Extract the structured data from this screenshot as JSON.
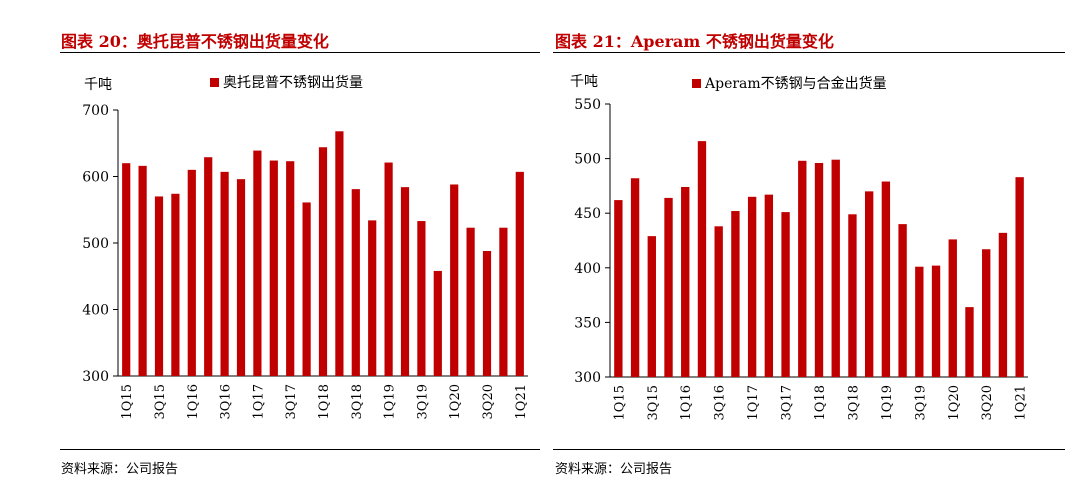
{
  "footer": {
    "source_label": "资料来源：公司报告"
  },
  "colors": {
    "bar": "#c00000",
    "title": "#c00000",
    "axis": "#000000"
  },
  "panels": [
    {
      "title": "图表 20：奥托昆普不锈钢出货量变化",
      "chart_data": {
        "type": "bar",
        "ylabel": "千吨",
        "ylim": [
          300,
          700
        ],
        "yticks": [
          300,
          400,
          500,
          600,
          700
        ],
        "legend": "top-center",
        "grid": false,
        "categories": [
          "1Q15",
          "2Q15",
          "3Q15",
          "4Q15",
          "1Q16",
          "2Q16",
          "3Q16",
          "4Q16",
          "1Q17",
          "2Q17",
          "3Q17",
          "4Q17",
          "1Q18",
          "2Q18",
          "3Q18",
          "4Q18",
          "1Q19",
          "2Q19",
          "3Q19",
          "4Q19",
          "1Q20",
          "2Q20",
          "3Q20",
          "4Q20",
          "1Q21"
        ],
        "tick_labels": [
          "1Q15",
          "",
          "3Q15",
          "",
          "1Q16",
          "",
          "3Q16",
          "",
          "1Q17",
          "",
          "3Q17",
          "",
          "1Q18",
          "",
          "3Q18",
          "",
          "1Q19",
          "",
          "3Q19",
          "",
          "1Q20",
          "",
          "3Q20",
          "",
          "1Q21"
        ],
        "series": [
          {
            "name": "奥托昆普不锈钢出货量",
            "values": [
              620,
              616,
              570,
              574,
              610,
              629,
              607,
              596,
              639,
              624,
              623,
              561,
              644,
              668,
              581,
              534,
              621,
              584,
              533,
              458,
              588,
              523,
              488,
              523,
              607
            ]
          }
        ]
      }
    },
    {
      "title": "图表 21：Aperam 不锈钢出货量变化",
      "chart_data": {
        "type": "bar",
        "ylabel": "千吨",
        "ylim": [
          300,
          550
        ],
        "yticks": [
          300,
          350,
          400,
          450,
          500,
          550
        ],
        "legend": "top-center",
        "grid": false,
        "categories": [
          "1Q15",
          "2Q15",
          "3Q15",
          "4Q15",
          "1Q16",
          "2Q16",
          "3Q16",
          "4Q16",
          "1Q17",
          "2Q17",
          "3Q17",
          "4Q17",
          "1Q18",
          "2Q18",
          "3Q18",
          "4Q18",
          "1Q19",
          "2Q19",
          "3Q19",
          "4Q19",
          "1Q20",
          "2Q20",
          "3Q20",
          "4Q20",
          "1Q21"
        ],
        "tick_labels": [
          "1Q15",
          "",
          "3Q15",
          "",
          "1Q16",
          "",
          "3Q16",
          "",
          "1Q17",
          "",
          "3Q17",
          "",
          "1Q18",
          "",
          "3Q18",
          "",
          "1Q19",
          "",
          "3Q19",
          "",
          "1Q20",
          "",
          "3Q20",
          "",
          "1Q21"
        ],
        "series": [
          {
            "name": "Aperam不锈钢与合金出货量",
            "values": [
              462,
              482,
              429,
              464,
              474,
              516,
              438,
              452,
              465,
              467,
              451,
              498,
              496,
              499,
              449,
              470,
              479,
              440,
              401,
              402,
              426,
              364,
              417,
              432,
              483
            ]
          }
        ]
      }
    }
  ]
}
